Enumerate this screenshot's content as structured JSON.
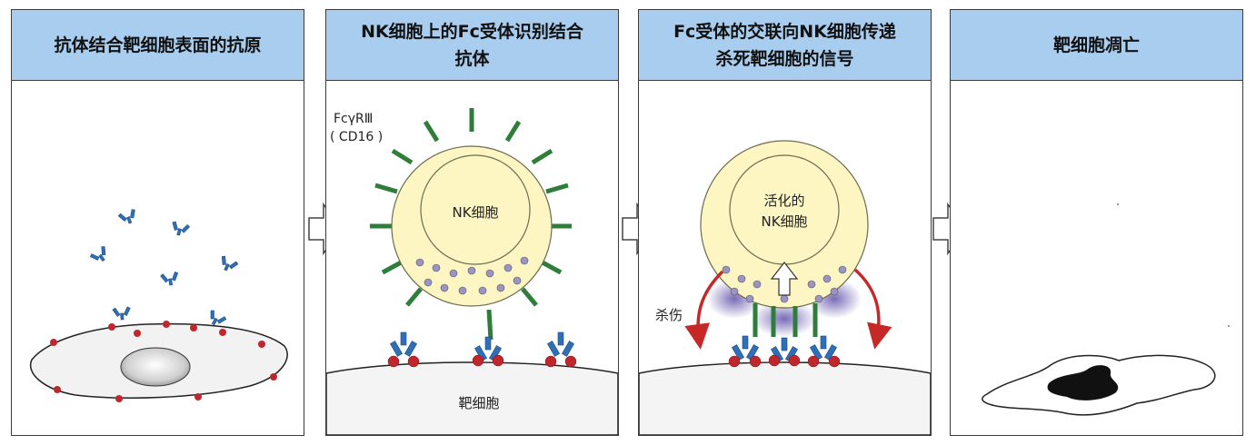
{
  "panels": [
    {
      "title": "抗体结合靶细胞表面的抗原"
    },
    {
      "title": "NK细胞上的Fc受体识别结合\n抗体",
      "receptor_label": "FcγRⅢ",
      "receptor_sublabel": "( CD16 )",
      "nk_label": "NK细胞",
      "target_label": "靶细胞"
    },
    {
      "title": "Fc受体的交联向NK细胞传递\n杀死靶细胞的信号",
      "activated_line1": "活化的",
      "activated_line2": "NK细胞",
      "kill_label": "杀伤"
    },
    {
      "title": "靶细胞凋亡"
    }
  ],
  "colors": {
    "header_bg": "#a8cdee",
    "nk_cell_fill": "#fdf6c3",
    "receptor": "#2e7d3a",
    "antibody": "#2f6fb8",
    "antigen": "#c0272d",
    "granule": "#9b94c6",
    "kill_arrow": "#c62828",
    "apoptotic_body": "#111111"
  },
  "icons": [
    "y-antibody-icon",
    "flow-arrow-icon",
    "kill-arrow-icon",
    "signal-up-arrow-icon"
  ]
}
